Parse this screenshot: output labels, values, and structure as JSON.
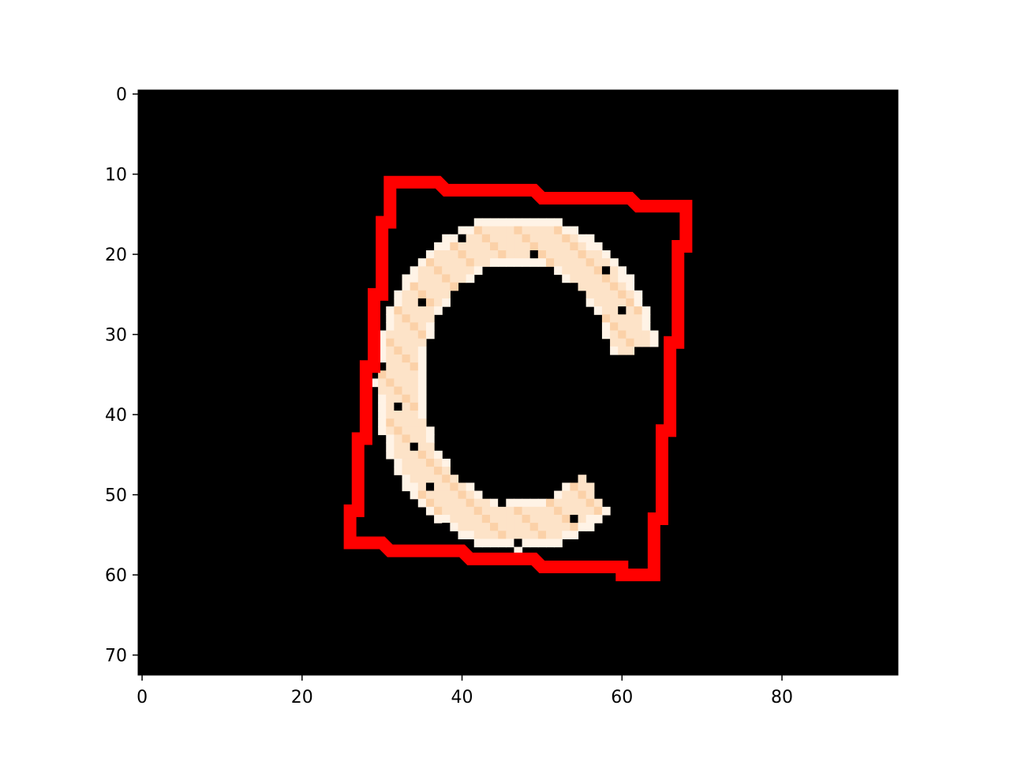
{
  "chart_data": {
    "type": "heatmap",
    "title": "",
    "xlabel": "",
    "ylabel": "",
    "image_size": {
      "rows": 73,
      "cols": 95
    },
    "xlim": [
      -0.5,
      94.5
    ],
    "ylim": [
      72.5,
      -0.5
    ],
    "x_ticks": [
      0,
      20,
      40,
      60,
      80
    ],
    "y_ticks": [
      0,
      10,
      20,
      30,
      40,
      50,
      60,
      70
    ],
    "grid": false,
    "colors": {
      "background": "#000000",
      "ring_light": "#fde3c8",
      "ring_mid": "#fbd1a8",
      "ring_edge": "#fff3e6",
      "outline": "#ff0000"
    },
    "ring": {
      "center": [
        47,
        36
      ],
      "outer_radius": [
        18,
        21
      ],
      "inner_radius": [
        12,
        15
      ],
      "gap_angle_deg": [
        -55,
        15
      ]
    },
    "outline_polygon": [
      [
        31,
        11
      ],
      [
        37,
        11
      ],
      [
        38,
        12
      ],
      [
        49,
        12
      ],
      [
        50,
        13
      ],
      [
        61,
        13
      ],
      [
        62,
        14
      ],
      [
        68,
        14
      ],
      [
        68,
        19
      ],
      [
        67,
        19
      ],
      [
        67,
        31
      ],
      [
        66,
        31
      ],
      [
        66,
        42
      ],
      [
        65,
        42
      ],
      [
        65,
        53
      ],
      [
        64,
        53
      ],
      [
        64,
        60
      ],
      [
        60,
        60
      ],
      [
        60,
        59
      ],
      [
        50,
        59
      ],
      [
        49,
        58
      ],
      [
        41,
        58
      ],
      [
        40,
        57
      ],
      [
        31,
        57
      ],
      [
        30,
        56
      ],
      [
        26,
        56
      ],
      [
        26,
        52
      ],
      [
        27,
        52
      ],
      [
        27,
        43
      ],
      [
        28,
        43
      ],
      [
        28,
        34
      ],
      [
        29,
        34
      ],
      [
        29,
        25
      ],
      [
        30,
        25
      ],
      [
        30,
        16
      ],
      [
        31,
        16
      ]
    ]
  }
}
